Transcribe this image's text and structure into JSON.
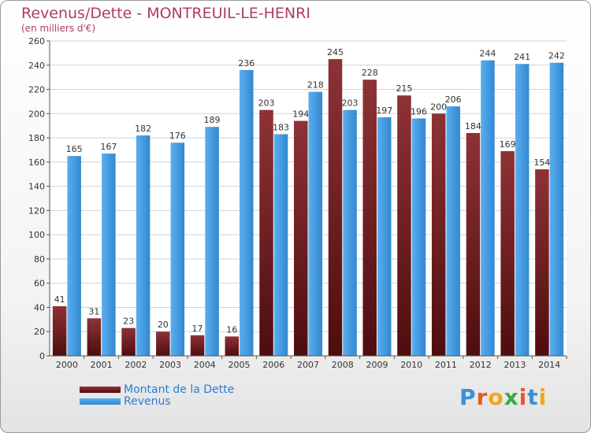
{
  "header": {
    "title": "Revenus/Dette - MONTREUIL-LE-HENRI",
    "subtitle": "(en milliers d'€)"
  },
  "colors": {
    "debt": "#7a2628",
    "revenue": "#3d9ae0",
    "title": "#b03a6a",
    "legend_text": "#2a7dd4"
  },
  "chart_data": {
    "type": "bar",
    "categories": [
      "2000",
      "2001",
      "2002",
      "2003",
      "2004",
      "2005",
      "2006",
      "2007",
      "2008",
      "2009",
      "2010",
      "2011",
      "2012",
      "2013",
      "2014"
    ],
    "series": [
      {
        "name": "Montant de la Dette",
        "values": [
          41,
          31,
          23,
          20,
          17,
          16,
          203,
          194,
          245,
          228,
          215,
          200,
          184,
          169,
          154
        ]
      },
      {
        "name": "Revenus",
        "values": [
          165,
          167,
          182,
          176,
          189,
          236,
          183,
          218,
          203,
          197,
          196,
          206,
          244,
          241,
          242
        ]
      }
    ],
    "ylim": [
      0,
      260
    ],
    "yticks": [
      0,
      20,
      40,
      60,
      80,
      100,
      120,
      140,
      160,
      180,
      200,
      220,
      240,
      260
    ],
    "grid": true,
    "legend_position": "bottom-left"
  },
  "legend": {
    "debt_label": "Montant de la Dette",
    "revenue_label": "Revenus"
  },
  "logo": {
    "text": "Proxiti",
    "letters": [
      {
        "ch": "P",
        "color": "#3d8fd6"
      },
      {
        "ch": "r",
        "color": "#e8582a"
      },
      {
        "ch": "o",
        "color": "#f2a51c"
      },
      {
        "ch": "x",
        "color": "#3aa84a"
      },
      {
        "ch": "i",
        "color": "#e8582a"
      },
      {
        "ch": "t",
        "color": "#3d8fd6"
      },
      {
        "ch": "i",
        "color": "#f2a51c"
      }
    ]
  }
}
